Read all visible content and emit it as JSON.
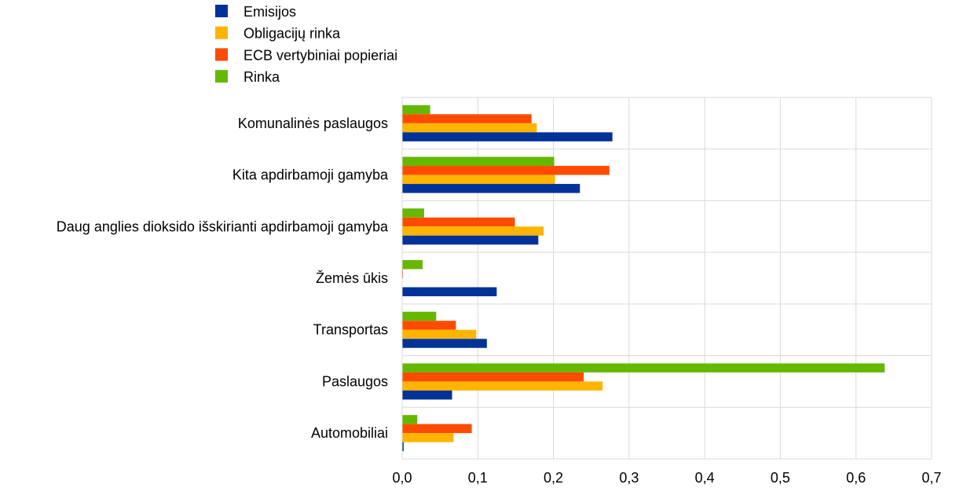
{
  "chart_data": {
    "type": "bar",
    "orientation": "horizontal",
    "title": "",
    "xlabel": "",
    "ylabel": "",
    "xlim": [
      0,
      0.7
    ],
    "x_ticks": [
      "0,0",
      "0,1",
      "0,2",
      "0,3",
      "0,4",
      "0,5",
      "0,6",
      "0,7"
    ],
    "grid": true,
    "legend_position": "top-left",
    "categories": [
      "Komunalinės paslaugos",
      "Kita apdirbamoji gamyba",
      "Daug anglies dioksido išskirianti apdirbamoji gamyba",
      "Žemės ūkis",
      "Transportas",
      "Paslaugos",
      "Automobiliai"
    ],
    "series": [
      {
        "name": "Emisijos",
        "color": "#003299",
        "values": [
          0.278,
          0.235,
          0.18,
          0.125,
          0.112,
          0.066,
          0.002
        ]
      },
      {
        "name": "Obligacijų rinka",
        "color": "#ffb400",
        "values": [
          0.178,
          0.202,
          0.187,
          0.0,
          0.098,
          0.265,
          0.068
        ]
      },
      {
        "name": "ECB vertybiniai popieriai",
        "color": "#ff4b00",
        "values": [
          0.171,
          0.274,
          0.149,
          0.001,
          0.071,
          0.24,
          0.092
        ]
      },
      {
        "name": "Rinka",
        "color": "#65b800",
        "values": [
          0.037,
          0.201,
          0.029,
          0.027,
          0.045,
          0.638,
          0.02
        ]
      }
    ]
  }
}
